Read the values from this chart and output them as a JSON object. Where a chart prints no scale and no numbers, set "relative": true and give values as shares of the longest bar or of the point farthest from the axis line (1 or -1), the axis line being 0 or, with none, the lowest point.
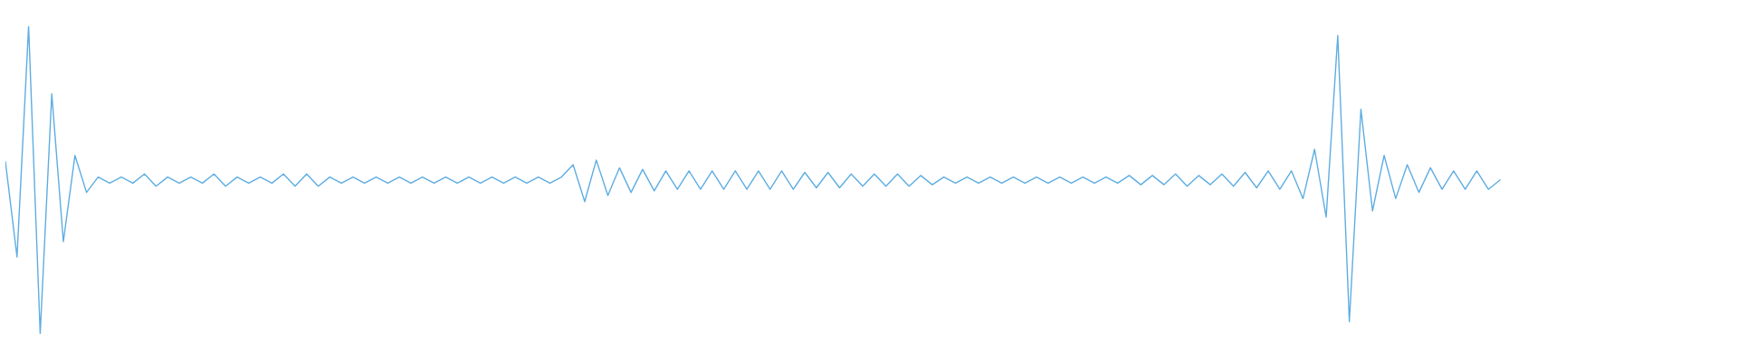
{
  "chart_data": {
    "type": "line",
    "relative": true,
    "tick_labels": false,
    "categories": [
      null,
      null,
      null,
      null,
      null,
      null,
      null,
      null,
      null,
      null,
      null,
      null,
      null,
      null,
      null,
      null,
      null,
      null,
      null,
      null,
      null,
      null,
      null,
      null,
      null,
      null,
      null,
      null,
      null,
      null,
      null,
      null,
      null,
      null,
      null,
      null,
      null,
      null,
      null,
      null,
      null,
      null,
      null,
      null,
      null,
      null,
      null,
      null,
      null,
      null,
      null,
      null,
      null,
      null,
      null,
      null,
      null,
      null,
      null,
      null,
      null,
      null,
      null,
      null,
      null,
      null,
      null,
      null,
      null,
      null,
      null,
      null,
      null,
      null,
      null,
      null,
      null,
      null,
      null,
      null,
      null,
      null,
      null,
      null,
      null,
      null,
      null,
      null,
      null,
      null,
      null,
      null,
      null,
      null,
      null,
      null,
      null,
      null,
      null,
      null,
      null,
      null,
      null,
      null,
      null,
      null,
      null,
      null,
      null,
      null,
      null,
      null,
      null,
      null,
      null,
      null,
      null,
      null,
      null,
      null,
      null,
      null,
      null,
      null,
      null,
      null,
      null,
      null,
      null,
      null,
      null,
      null,
      null,
      null,
      null,
      null,
      null,
      null,
      null,
      null,
      null,
      null,
      null,
      null,
      null,
      null,
      null,
      null,
      null,
      null
    ],
    "series": [
      {
        "color": "#5dade2",
        "values": [
          0.56,
          0.25,
          1.0,
          0.0,
          0.78,
          0.3,
          0.58,
          0.46,
          0.51,
          0.49,
          0.51,
          0.49,
          0.52,
          0.48,
          0.51,
          0.49,
          0.51,
          0.49,
          0.52,
          0.48,
          0.51,
          0.49,
          0.51,
          0.49,
          0.52,
          0.48,
          0.52,
          0.48,
          0.51,
          0.49,
          0.51,
          0.49,
          0.51,
          0.49,
          0.51,
          0.49,
          0.51,
          0.49,
          0.51,
          0.49,
          0.51,
          0.49,
          0.51,
          0.49,
          0.51,
          0.49,
          0.51,
          0.49,
          0.51,
          0.55,
          0.43,
          0.565,
          0.45,
          0.54,
          0.46,
          0.535,
          0.465,
          0.53,
          0.47,
          0.53,
          0.47,
          0.53,
          0.47,
          0.53,
          0.47,
          0.53,
          0.47,
          0.53,
          0.47,
          0.525,
          0.475,
          0.525,
          0.475,
          0.52,
          0.48,
          0.52,
          0.48,
          0.52,
          0.48,
          0.515,
          0.485,
          0.51,
          0.49,
          0.51,
          0.49,
          0.51,
          0.49,
          0.51,
          0.49,
          0.51,
          0.49,
          0.51,
          0.49,
          0.51,
          0.49,
          0.51,
          0.49,
          0.515,
          0.485,
          0.515,
          0.485,
          0.52,
          0.48,
          0.515,
          0.485,
          0.52,
          0.48,
          0.525,
          0.475,
          0.53,
          0.47,
          0.53,
          0.44,
          0.6,
          0.38,
          0.97,
          0.04,
          0.73,
          0.4,
          0.58,
          0.44,
          0.55,
          0.46,
          0.54,
          0.47,
          0.53,
          0.47,
          0.53,
          0.47,
          0.5,
          null,
          null,
          null,
          null,
          null,
          null,
          null,
          null,
          null,
          null,
          null,
          null,
          null,
          null,
          null,
          null,
          null,
          null,
          null,
          null
        ]
      }
    ]
  }
}
